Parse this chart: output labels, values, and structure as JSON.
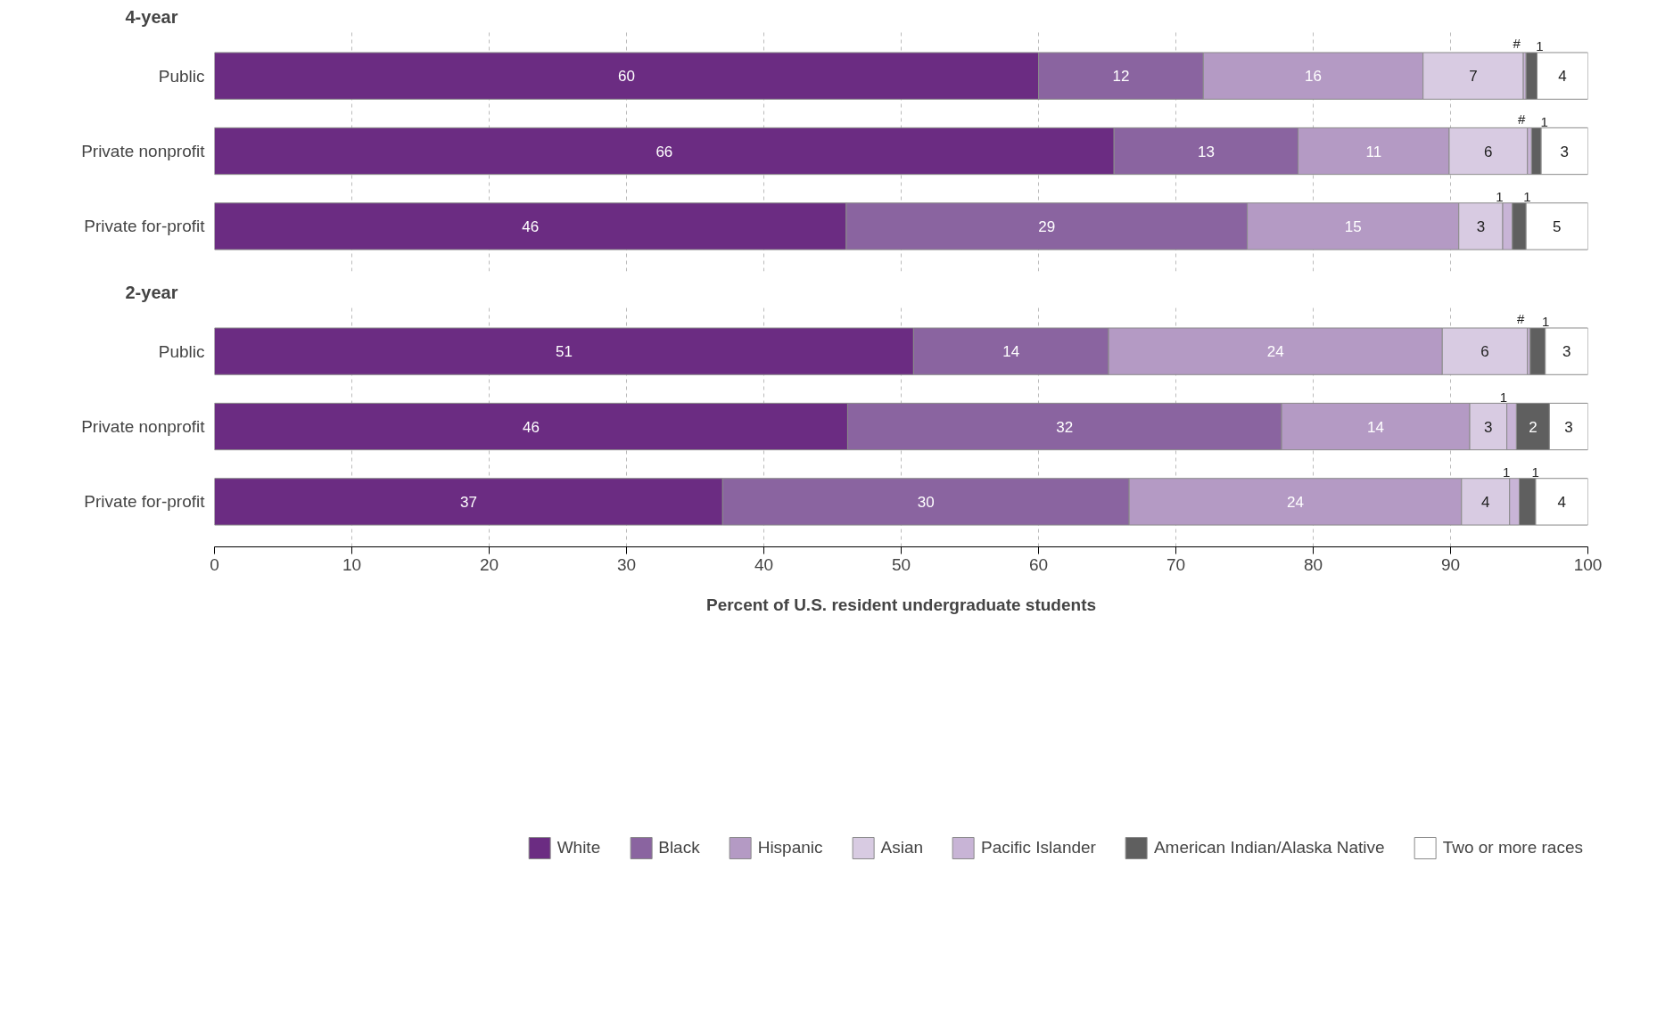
{
  "chart_data": [
    {
      "type": "bar",
      "orientation": "horizontal",
      "stacked": true,
      "title": "4-year",
      "categories": [
        "Public",
        "Private nonprofit",
        "Private for-profit"
      ],
      "series": [
        {
          "color": "#6b2c82",
          "values": [
            60,
            65.5,
            46
          ],
          "value_labels": [
            "60",
            "66",
            "46"
          ]
        },
        {
          "color": "#8a64a0",
          "values": [
            12,
            13.4,
            29.2
          ],
          "value_labels": [
            "12",
            "13",
            "29"
          ]
        },
        {
          "color": "#b49ac4",
          "values": [
            16,
            11,
            15.4
          ],
          "value_labels": [
            "16",
            "11",
            "15"
          ]
        },
        {
          "color": "#d8cbe2",
          "values": [
            7.3,
            5.7,
            3.2
          ],
          "value_labels": [
            "7",
            "6",
            "3"
          ]
        },
        {
          "color": "#c8b4d6",
          "values": [
            0.2,
            0.3,
            0.7
          ],
          "value_labels": [
            "#",
            "#",
            "1"
          ]
        },
        {
          "color": "#5f5f5f",
          "values": [
            0.8,
            0.7,
            1
          ],
          "value_labels": [
            "1",
            "1",
            "1"
          ]
        },
        {
          "color": "#ffffff",
          "values": [
            3.7,
            3.4,
            4.5
          ],
          "value_labels": [
            "4",
            "3",
            "5"
          ]
        }
      ],
      "xlim": [
        0,
        100
      ],
      "xticks": [
        0,
        10,
        20,
        30,
        40,
        50,
        60,
        70,
        80,
        90,
        100
      ],
      "grid": "x",
      "tick_labels": "y",
      "legend": false
    },
    {
      "type": "bar",
      "orientation": "horizontal",
      "stacked": true,
      "title": "2-year",
      "categories": [
        "Public",
        "Private nonprofit",
        "Private for-profit"
      ],
      "series": [
        {
          "name": "White",
          "color": "#6b2c82",
          "values": [
            50.9,
            46.1,
            37
          ],
          "value_labels": [
            "51",
            "46",
            "37"
          ]
        },
        {
          "name": "Black",
          "color": "#8a64a0",
          "values": [
            14.2,
            31.6,
            29.6
          ],
          "value_labels": [
            "14",
            "32",
            "30"
          ]
        },
        {
          "name": "Hispanic",
          "color": "#b49ac4",
          "values": [
            24.3,
            13.7,
            24.2
          ],
          "value_labels": [
            "24",
            "14",
            "24"
          ]
        },
        {
          "name": "Asian",
          "color": "#d8cbe2",
          "values": [
            6.2,
            2.7,
            3.5
          ],
          "value_labels": [
            "6",
            "3",
            "4"
          ]
        },
        {
          "name": "Pacific Islander",
          "color": "#c8b4d6",
          "values": [
            0.2,
            0.7,
            0.7
          ],
          "value_labels": [
            "#",
            "1",
            "1"
          ]
        },
        {
          "name": "American Indian/Alaska Native",
          "color": "#5f5f5f",
          "values": [
            1.1,
            2.4,
            1.2
          ],
          "value_labels": [
            "1",
            "2",
            "1"
          ]
        },
        {
          "name": "Two or more races",
          "color": "#ffffff",
          "values": [
            3.1,
            2.8,
            3.8
          ],
          "value_labels": [
            "3",
            "3",
            "4"
          ]
        }
      ],
      "xlim": [
        0,
        100
      ],
      "xticks": [
        0,
        10,
        20,
        30,
        40,
        50,
        60,
        70,
        80,
        90,
        100
      ],
      "grid": "x",
      "xlabel": "Percent of U.S. resident undergraduate students",
      "legend": "bottom"
    }
  ]
}
